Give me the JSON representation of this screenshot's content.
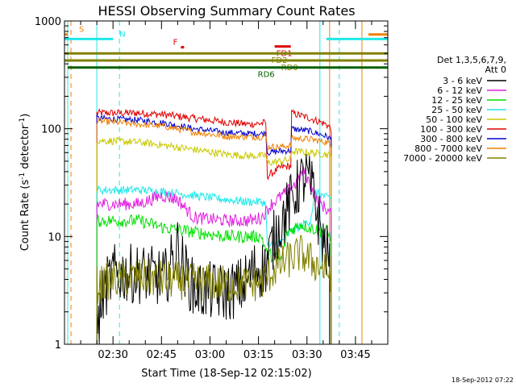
{
  "chart_data": {
    "type": "line",
    "title": "HESSI Observing Summary Count Rates",
    "xlabel": "Start Time (18-Sep-12 02:15:02)",
    "ylabel_main": "Count Rate (s",
    "ylabel_sup1": "-1",
    "ylabel_mid": " detector",
    "ylabel_sup2": "-1",
    "ylabel_end": ")",
    "y_scale": "log",
    "xlim": [
      "02:15",
      "03:55"
    ],
    "ylim": [
      1,
      1000
    ],
    "x_ticks": [
      "02:30",
      "02:45",
      "03:00",
      "03:15",
      "03:30",
      "03:45"
    ],
    "y_ticks": [
      "1",
      "10",
      "100",
      "1000"
    ],
    "footer": "18-Sep-2012 07:22",
    "legend": {
      "placement": "right",
      "header": [
        "Det 1,3,5,6,7,9,",
        "Att 0"
      ],
      "entries": [
        {
          "label": "3 - 6 keV",
          "color": "#000000"
        },
        {
          "label": "6 - 12 keV",
          "color": "#e020e0"
        },
        {
          "label": "12 - 25 keV",
          "color": "#00e000"
        },
        {
          "label": "25 - 50 keV",
          "color": "#20e8e8"
        },
        {
          "label": "50 - 100 keV",
          "color": "#c8c800"
        },
        {
          "label": "100 - 300 keV",
          "color": "#e00000"
        },
        {
          "label": "300 - 800 keV",
          "color": "#0000d0"
        },
        {
          "label": "800 - 7000 keV",
          "color": "#f08000"
        },
        {
          "label": "7000 - 20000 keV",
          "color": "#808000"
        }
      ]
    },
    "flags": [
      {
        "label": "S",
        "color": "#f08000",
        "y": 750,
        "segments": [
          [
            "02:15",
            "02:16"
          ],
          [
            "03:49",
            "03:55"
          ]
        ]
      },
      {
        "label": "N",
        "color": "#20e8e8",
        "y": 680,
        "segments": [
          [
            "02:15",
            "02:30"
          ],
          [
            "03:36",
            "03:55"
          ]
        ]
      },
      {
        "label": "F",
        "color": "#e00000",
        "y": 570,
        "segments": [
          [
            "02:51",
            "02:52"
          ]
        ]
      },
      {
        "label": "FD1",
        "color": "#e00000",
        "y": 580,
        "segments": [
          [
            "03:20",
            "03:25"
          ]
        ]
      },
      {
        "label": "FD2",
        "color": "#808000",
        "y": 500,
        "segments": [
          [
            "02:15",
            "03:55"
          ]
        ]
      },
      {
        "label": "RD0",
        "color": "#808000",
        "y": 430,
        "segments": [
          [
            "02:15",
            "03:55"
          ]
        ]
      },
      {
        "label": "RD6",
        "color": "#006000",
        "y": 370,
        "segments": [
          [
            "02:16",
            "03:55"
          ]
        ]
      }
    ],
    "vertical_markers": [
      {
        "color": "#20e8e8",
        "style": "solid",
        "x": [
          "02:16",
          "02:25",
          "03:34"
        ]
      },
      {
        "color": "#20e8e8",
        "style": "dashed",
        "x": [
          "02:32",
          "03:40"
        ]
      },
      {
        "color": "#f08000",
        "style": "dashed",
        "x": [
          "02:17"
        ]
      },
      {
        "color": "#f08000",
        "style": "solid",
        "x": [
          "03:37",
          "03:47"
        ]
      }
    ],
    "series": [
      {
        "name": "100 - 300 keV",
        "color": "#e00000",
        "noise": 0.035,
        "seg": [
          [
            "02:25",
            140
          ],
          [
            "02:38",
            140
          ],
          [
            "02:46",
            135
          ],
          [
            "02:55",
            125
          ],
          [
            "03:05",
            115
          ],
          [
            "03:12",
            110
          ],
          [
            "03:16",
            112
          ],
          [
            "03:17.4",
            115
          ],
          [
            "03:17.6",
            36
          ],
          [
            "03:22",
            44
          ],
          [
            "03:25",
            45
          ],
          [
            "03:25.2",
            140
          ],
          [
            "03:31",
            125
          ],
          [
            "03:36",
            110
          ],
          [
            "03:37.5",
            100
          ]
        ]
      },
      {
        "name": "300 - 800 keV",
        "color": "#0000d0",
        "noise": 0.03,
        "seg": [
          [
            "02:25",
            125
          ],
          [
            "02:38",
            120
          ],
          [
            "02:46",
            113
          ],
          [
            "02:55",
            100
          ],
          [
            "03:05",
            92
          ],
          [
            "03:12",
            90
          ],
          [
            "03:16",
            90
          ],
          [
            "03:17.4",
            92
          ],
          [
            "03:17.6",
            60
          ],
          [
            "03:22",
            62
          ],
          [
            "03:25",
            63
          ],
          [
            "03:25.2",
            100
          ],
          [
            "03:31",
            95
          ],
          [
            "03:36",
            85
          ],
          [
            "03:37.5",
            80
          ]
        ]
      },
      {
        "name": "800 - 7000 keV",
        "color": "#f08000",
        "noise": 0.03,
        "seg": [
          [
            "02:25",
            118
          ],
          [
            "02:38",
            110
          ],
          [
            "02:46",
            105
          ],
          [
            "02:55",
            93
          ],
          [
            "03:05",
            85
          ],
          [
            "03:12",
            84
          ],
          [
            "03:16",
            84
          ],
          [
            "03:17.4",
            86
          ],
          [
            "03:17.6",
            68
          ],
          [
            "03:22",
            68
          ],
          [
            "03:25",
            70
          ],
          [
            "03:25.2",
            82
          ],
          [
            "03:31",
            80
          ],
          [
            "03:36",
            75
          ],
          [
            "03:37.5",
            70
          ]
        ]
      },
      {
        "name": "50 - 100 keV",
        "color": "#c8c800",
        "noise": 0.035,
        "seg": [
          [
            "02:25",
            78
          ],
          [
            "02:38",
            75
          ],
          [
            "02:46",
            70
          ],
          [
            "02:55",
            64
          ],
          [
            "03:05",
            58
          ],
          [
            "03:12",
            56
          ],
          [
            "03:16",
            56
          ],
          [
            "03:17.4",
            57
          ],
          [
            "03:17.6",
            48
          ],
          [
            "03:22",
            50
          ],
          [
            "03:25",
            52
          ],
          [
            "03:25.2",
            62
          ],
          [
            "03:31",
            60
          ],
          [
            "03:36",
            58
          ],
          [
            "03:37.5",
            56
          ]
        ]
      },
      {
        "name": "25 - 50 keV",
        "color": "#20e8e8",
        "noise": 0.04,
        "seg": [
          [
            "02:25",
            27
          ],
          [
            "02:38",
            27
          ],
          [
            "02:46",
            26
          ],
          [
            "02:55",
            24
          ],
          [
            "03:05",
            22
          ],
          [
            "03:12",
            21
          ],
          [
            "03:16",
            21
          ],
          [
            "03:17.4",
            20
          ],
          [
            "03:17.6",
            8
          ],
          [
            "03:22",
            9
          ],
          [
            "03:25",
            11
          ],
          [
            "03:27",
            12
          ],
          [
            "03:31",
            14
          ],
          [
            "03:32.6",
            26
          ],
          [
            "03:36",
            23
          ],
          [
            "03:37.5",
            23
          ]
        ]
      },
      {
        "name": "6 - 12 keV",
        "color": "#e020e0",
        "noise": 0.06,
        "seg": [
          [
            "02:25",
            20
          ],
          [
            "02:38",
            20
          ],
          [
            "02:45",
            24
          ],
          [
            "02:50",
            22
          ],
          [
            "02:55",
            15
          ],
          [
            "03:05",
            14
          ],
          [
            "03:12",
            14
          ],
          [
            "03:16",
            15
          ],
          [
            "03:19",
            20
          ],
          [
            "03:23",
            25
          ],
          [
            "03:27",
            32
          ],
          [
            "03:29",
            42
          ],
          [
            "03:31",
            30
          ],
          [
            "03:33",
            22
          ],
          [
            "03:36",
            18
          ],
          [
            "03:37.5",
            16
          ]
        ]
      },
      {
        "name": "12 - 25 keV",
        "color": "#00e000",
        "noise": 0.06,
        "seg": [
          [
            "02:25",
            14
          ],
          [
            "02:38",
            14
          ],
          [
            "02:46",
            12
          ],
          [
            "02:55",
            11
          ],
          [
            "03:05",
            10
          ],
          [
            "03:12",
            10
          ],
          [
            "03:16",
            10
          ],
          [
            "03:17.5",
            7
          ],
          [
            "03:22",
            6
          ],
          [
            "03:24",
            11
          ],
          [
            "03:28",
            13
          ],
          [
            "03:31",
            12
          ],
          [
            "03:36",
            11
          ],
          [
            "03:37.5",
            10
          ]
        ]
      },
      {
        "name": "3 - 6 keV",
        "color": "#000000",
        "noise": 0.28,
        "seg": [
          [
            "02:25",
            1.2
          ],
          [
            "02:27",
            3
          ],
          [
            "02:30",
            4.5
          ],
          [
            "02:40",
            4.5
          ],
          [
            "02:46",
            4
          ],
          [
            "02:50",
            8
          ],
          [
            "02:52",
            5
          ],
          [
            "02:55",
            3.2
          ],
          [
            "03:05",
            3
          ],
          [
            "03:10",
            3.5
          ],
          [
            "03:14",
            5
          ],
          [
            "03:17",
            5
          ],
          [
            "03:20",
            10
          ],
          [
            "03:24",
            18
          ],
          [
            "03:28",
            32
          ],
          [
            "03:30",
            36
          ],
          [
            "03:32",
            25
          ],
          [
            "03:35",
            9
          ],
          [
            "03:37",
            6
          ]
        ]
      },
      {
        "name": "7000 - 20000 keV",
        "color": "#808000",
        "noise": 0.18,
        "seg": [
          [
            "02:25",
            3.5
          ],
          [
            "02:30",
            4
          ],
          [
            "02:38",
            4.2
          ],
          [
            "02:46",
            4
          ],
          [
            "02:55",
            3.8
          ],
          [
            "03:05",
            3.6
          ],
          [
            "03:12",
            3.6
          ],
          [
            "03:16",
            3.8
          ],
          [
            "03:20",
            5
          ],
          [
            "03:24",
            6
          ],
          [
            "03:28",
            7
          ],
          [
            "03:31",
            6
          ],
          [
            "03:35",
            5
          ],
          [
            "03:37.5",
            4.5
          ]
        ]
      }
    ]
  }
}
